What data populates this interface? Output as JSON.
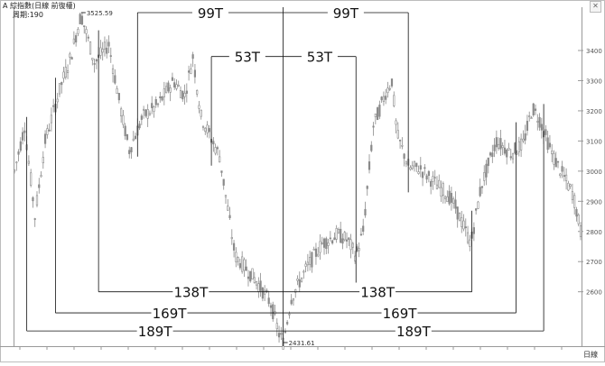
{
  "header": {
    "title": "A 綜指數(日線 前復權)",
    "period_label": "周期:190"
  },
  "chart_data": {
    "type": "candlestick",
    "ylim": [
      2431.61,
      3525.59
    ],
    "y_ticks": [
      "3400",
      "3300",
      "3200",
      "3100",
      "3000",
      "2900",
      "2800",
      "2700",
      "2600"
    ],
    "x_axis_label": "日線",
    "high_label": "3525.59",
    "low_label": "2431.61",
    "anchors": [
      {
        "i": 0,
        "v": 3000
      },
      {
        "i": 10,
        "v": 3150
      },
      {
        "i": 20,
        "v": 2850
      },
      {
        "i": 30,
        "v": 3100
      },
      {
        "i": 45,
        "v": 3280
      },
      {
        "i": 55,
        "v": 3380
      },
      {
        "i": 65,
        "v": 3520
      },
      {
        "i": 78,
        "v": 3360
      },
      {
        "i": 92,
        "v": 3420
      },
      {
        "i": 105,
        "v": 3180
      },
      {
        "i": 112,
        "v": 3070
      },
      {
        "i": 125,
        "v": 3180
      },
      {
        "i": 140,
        "v": 3220
      },
      {
        "i": 155,
        "v": 3300
      },
      {
        "i": 166,
        "v": 3250
      },
      {
        "i": 174,
        "v": 3380
      },
      {
        "i": 182,
        "v": 3180
      },
      {
        "i": 200,
        "v": 3050
      },
      {
        "i": 215,
        "v": 2720
      },
      {
        "i": 235,
        "v": 2640
      },
      {
        "i": 250,
        "v": 2560
      },
      {
        "i": 258,
        "v": 2460
      },
      {
        "i": 262,
        "v": 2432
      },
      {
        "i": 270,
        "v": 2580
      },
      {
        "i": 285,
        "v": 2680
      },
      {
        "i": 300,
        "v": 2760
      },
      {
        "i": 315,
        "v": 2790
      },
      {
        "i": 325,
        "v": 2770
      },
      {
        "i": 333,
        "v": 2720
      },
      {
        "i": 340,
        "v": 2800
      },
      {
        "i": 350,
        "v": 3150
      },
      {
        "i": 362,
        "v": 3260
      },
      {
        "i": 368,
        "v": 3300
      },
      {
        "i": 373,
        "v": 3120
      },
      {
        "i": 385,
        "v": 3010
      },
      {
        "i": 395,
        "v": 3010
      },
      {
        "i": 410,
        "v": 2960
      },
      {
        "i": 423,
        "v": 2920
      },
      {
        "i": 430,
        "v": 2880
      },
      {
        "i": 445,
        "v": 2760
      },
      {
        "i": 455,
        "v": 2950
      },
      {
        "i": 470,
        "v": 3100
      },
      {
        "i": 484,
        "v": 3060
      },
      {
        "i": 496,
        "v": 3090
      },
      {
        "i": 505,
        "v": 3210
      },
      {
        "i": 512,
        "v": 3170
      },
      {
        "i": 525,
        "v": 3050
      },
      {
        "i": 545,
        "v": 2920
      },
      {
        "i": 552,
        "v": 2800
      }
    ],
    "cycle_lines": [
      {
        "label": "99T",
        "a_idx": 120,
        "b_idx": 384,
        "peak": 3525.59
      },
      {
        "label": "53T",
        "a_idx": 192,
        "b_idx": 333,
        "peak": 3380
      },
      {
        "label": "138T",
        "a_idx": 82,
        "b_idx": 446,
        "peak": 2600
      },
      {
        "label": "169T",
        "a_idx": 40,
        "b_idx": 489,
        "peak": 2530
      },
      {
        "label": "189T",
        "a_idx": 12,
        "b_idx": 516,
        "peak": 2470
      }
    ],
    "pivot_index": 262
  },
  "colors": {
    "candle": "#8a8a8a",
    "candle_dark": "#444444",
    "line": "#111111",
    "grid": "#d0d0d0"
  }
}
